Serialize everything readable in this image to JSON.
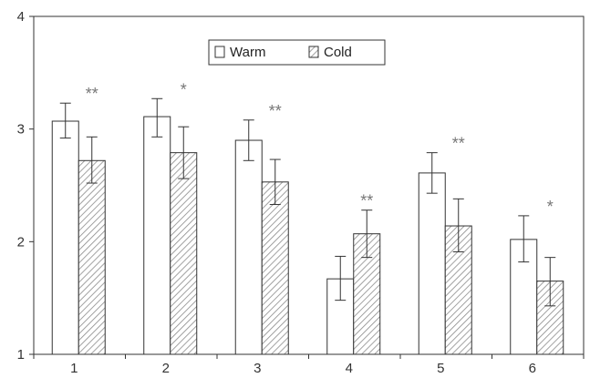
{
  "chart_data": {
    "type": "bar",
    "categories": [
      "1",
      "2",
      "3",
      "4",
      "5",
      "6"
    ],
    "series": [
      {
        "name": "Warm",
        "values": [
          3.07,
          3.11,
          2.9,
          1.67,
          2.61,
          2.02
        ],
        "error_low": [
          2.92,
          2.93,
          2.72,
          1.48,
          2.43,
          1.82
        ],
        "error_high": [
          3.23,
          3.27,
          3.08,
          1.87,
          2.79,
          2.23
        ],
        "fill": "#ffffff",
        "pattern": "none"
      },
      {
        "name": "Cold",
        "values": [
          2.72,
          2.79,
          2.53,
          2.07,
          2.14,
          1.65
        ],
        "error_low": [
          2.52,
          2.56,
          2.33,
          1.86,
          1.91,
          1.43
        ],
        "error_high": [
          2.93,
          3.02,
          2.73,
          2.28,
          2.38,
          1.86
        ],
        "fill": "#ffffff",
        "pattern": "diagonal-hatch"
      }
    ],
    "significance": [
      "**",
      "*",
      "**",
      "**",
      "**",
      "*"
    ],
    "ylim": [
      1,
      4
    ],
    "yticks": [
      "1",
      "2",
      "3",
      "4"
    ],
    "title": "",
    "xlabel": "",
    "ylabel": "",
    "grid": false,
    "legend_position": "top-center",
    "colors": {
      "axis": "#333333",
      "bar_stroke": "#333333",
      "hatch": "#8a8a8a",
      "significance": "#777777"
    }
  }
}
